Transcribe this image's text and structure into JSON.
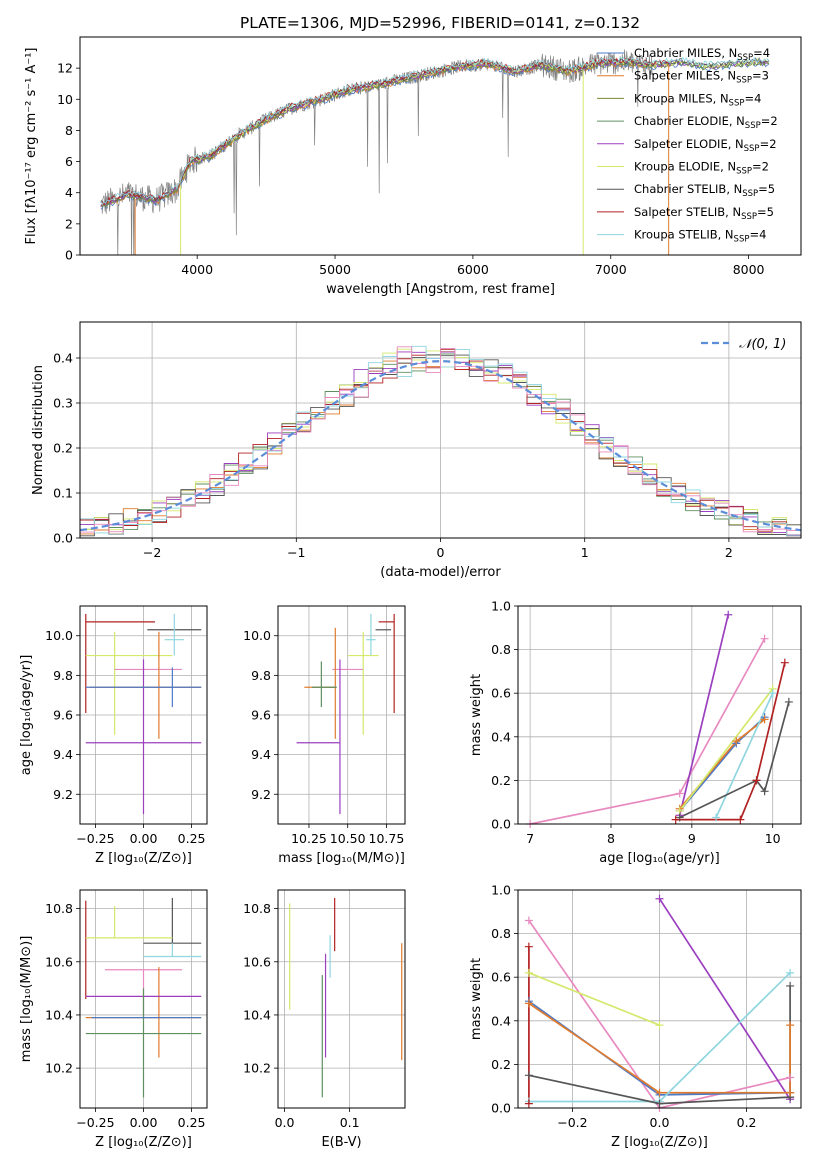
{
  "title": "PLATE=1306, MJD=52996, FIBERID=0141, z=0.132",
  "colors": [
    "#4e79c5",
    "#e07b2e",
    "#7d8a2e",
    "#5f8f5f",
    "#9b3fbf",
    "#d4e86a",
    "#555555",
    "#b22222",
    "#8fd6e0",
    "#e88ac0",
    "#8b6a4a",
    "#777777"
  ],
  "chart_data": [
    {
      "id": "spectrum",
      "type": "line",
      "xlabel": "wavelength [Angstrom, rest frame]",
      "ylabel": "Flux [fλ10⁻¹⁷ erg cm⁻² s⁻¹ A⁻¹]",
      "xlim": [
        3150,
        8380
      ],
      "ylim": [
        0,
        14
      ],
      "xticks": [
        "4000",
        "5000",
        "6000",
        "7000",
        "8000"
      ],
      "yticks": [
        "0",
        "2",
        "4",
        "6",
        "8",
        "10",
        "12"
      ],
      "grid": false,
      "legend_position": "top-right",
      "continuum": [
        [
          3300,
          3.2
        ],
        [
          3500,
          3.9
        ],
        [
          3700,
          3.5
        ],
        [
          3850,
          4.2
        ],
        [
          3950,
          6.0
        ],
        [
          4100,
          6.4
        ],
        [
          4300,
          7.7
        ],
        [
          4500,
          8.7
        ],
        [
          4700,
          9.5
        ],
        [
          4900,
          10.0
        ],
        [
          5100,
          10.6
        ],
        [
          5300,
          10.9
        ],
        [
          5500,
          11.3
        ],
        [
          5700,
          11.7
        ],
        [
          5900,
          12.1
        ],
        [
          6100,
          12.3
        ],
        [
          6300,
          11.8
        ],
        [
          6500,
          12.2
        ],
        [
          6700,
          11.8
        ],
        [
          6900,
          12.3
        ],
        [
          7100,
          12.4
        ],
        [
          7300,
          12.2
        ],
        [
          7500,
          12.4
        ],
        [
          7700,
          12.1
        ],
        [
          7900,
          12.3
        ],
        [
          8100,
          12.4
        ]
      ],
      "series": [
        {
          "name": "Chabrier MILES, N_SSP=4",
          "color": "#4e79c5"
        },
        {
          "name": "Salpeter MILES, N_SSP=3",
          "color": "#e07b2e"
        },
        {
          "name": "Kroupa MILES, N_SSP=4",
          "color": "#7d8a2e"
        },
        {
          "name": "Chabrier ELODIE, N_SSP=2",
          "color": "#5f8f5f"
        },
        {
          "name": "Salpeter ELODIE, N_SSP=2",
          "color": "#9b3fbf"
        },
        {
          "name": "Kroupa ELODIE, N_SSP=2",
          "color": "#d4e86a"
        },
        {
          "name": "Chabrier STELIB, N_SSP=5",
          "color": "#555555"
        },
        {
          "name": "Salpeter STELIB, N_SSP=5",
          "color": "#b22222"
        },
        {
          "name": "Kroupa STELIB, N_SSP=4",
          "color": "#8fd6e0"
        }
      ]
    },
    {
      "id": "residuals",
      "type": "line",
      "xlabel": "(data-model)/error",
      "ylabel": "Normed distribution",
      "xlim": [
        -2.5,
        2.5
      ],
      "ylim": [
        0,
        0.48
      ],
      "xticks": [
        "−2",
        "−1",
        "0",
        "1",
        "2"
      ],
      "yticks": [
        "0.0",
        "0.1",
        "0.2",
        "0.3",
        "0.4"
      ],
      "grid": true,
      "legend": "𝒩(0, 1)",
      "legend_position": "top-right"
    },
    {
      "id": "age_vs_Z",
      "type": "scatter",
      "xlabel": "Z [log₁₀(Z/Z⊙)]",
      "ylabel": "age  [log₁₀(age/yr)]",
      "xlim": [
        -0.33,
        0.33
      ],
      "ylim": [
        9.05,
        10.15
      ],
      "xticks": [
        "−0.25",
        "0.00",
        "0.25"
      ],
      "yticks": [
        "9.2",
        "9.4",
        "9.6",
        "9.8",
        "10.0"
      ],
      "grid": true,
      "points": [
        {
          "x": -0.3,
          "y": 10.07,
          "xerr": [
            0,
            0.36
          ],
          "yerr": [
            0.46,
            0.04
          ],
          "color": "#b22222"
        },
        {
          "x": 0.15,
          "y": 10.03,
          "xerr": [
            0.13,
            0.15
          ],
          "yerr": [
            0.0,
            0.0
          ],
          "color": "#555555"
        },
        {
          "x": 0.16,
          "y": 9.98,
          "xerr": [
            0.05,
            0.05
          ],
          "yerr": [
            0.08,
            0.13
          ],
          "color": "#8fd6e0"
        },
        {
          "x": -0.15,
          "y": 9.9,
          "xerr": [
            0.15,
            0.3
          ],
          "yerr": [
            0.4,
            0.12
          ],
          "color": "#d4e86a"
        },
        {
          "x": 0.0,
          "y": 9.83,
          "xerr": [
            0.15,
            0.2
          ],
          "yerr": [
            0.0,
            0.0
          ],
          "color": "#e88ac0"
        },
        {
          "x": 0.08,
          "y": 9.74,
          "xerr": [
            0.36,
            0.22
          ],
          "yerr": [
            0.26,
            0.28
          ],
          "color": "#e07b2e"
        },
        {
          "x": 0.0,
          "y": 9.46,
          "xerr": [
            0.3,
            0.3
          ],
          "yerr": [
            0.36,
            0.42
          ],
          "color": "#9b3fbf"
        },
        {
          "x": 0.15,
          "y": 9.74,
          "xerr": [
            0.45,
            0.15
          ],
          "yerr": [
            0.1,
            0.1
          ],
          "color": "#4e79c5"
        }
      ]
    },
    {
      "id": "age_vs_mass",
      "type": "scatter",
      "xlabel": "mass [log₁₀(M/M⊙)]",
      "ylabel": "",
      "xlim": [
        10.05,
        10.87
      ],
      "ylim": [
        9.05,
        10.15
      ],
      "xticks": [
        "10.25",
        "10.50",
        "10.75"
      ],
      "yticks": [
        "9.2",
        "9.4",
        "9.6",
        "9.8",
        "10.0"
      ],
      "grid": true,
      "points": [
        {
          "x": 10.8,
          "y": 10.07,
          "xerr": [
            0.1,
            0.0
          ],
          "yerr": [
            0.46,
            0.04
          ],
          "color": "#b22222"
        },
        {
          "x": 10.7,
          "y": 10.03,
          "xerr": [
            0.02,
            0.08
          ],
          "yerr": [
            0.0,
            0.0
          ],
          "color": "#555555"
        },
        {
          "x": 10.65,
          "y": 9.98,
          "xerr": [
            0.03,
            0.03
          ],
          "yerr": [
            0.08,
            0.13
          ],
          "color": "#8fd6e0"
        },
        {
          "x": 10.6,
          "y": 9.9,
          "xerr": [
            0.1,
            0.1
          ],
          "yerr": [
            0.4,
            0.12
          ],
          "color": "#d4e86a"
        },
        {
          "x": 10.5,
          "y": 9.83,
          "xerr": [
            0.1,
            0.1
          ],
          "yerr": [
            0.0,
            0.0
          ],
          "color": "#e88ac0"
        },
        {
          "x": 10.42,
          "y": 9.74,
          "xerr": [
            0.2,
            0.0
          ],
          "yerr": [
            0.26,
            0.3
          ],
          "color": "#e07b2e"
        },
        {
          "x": 10.45,
          "y": 9.46,
          "xerr": [
            0.28,
            0.0
          ],
          "yerr": [
            0.36,
            0.42
          ],
          "color": "#9b3fbf"
        },
        {
          "x": 10.33,
          "y": 9.74,
          "xerr": [
            0.06,
            0.1
          ],
          "yerr": [
            0.1,
            0.13
          ],
          "color": "#5f8f5f"
        }
      ]
    },
    {
      "id": "mass_weight_vs_age",
      "type": "line",
      "xlabel": "age  [log₁₀(age/yr)]",
      "ylabel": "mass weight",
      "xlim": [
        6.85,
        10.35
      ],
      "ylim": [
        0,
        1
      ],
      "xticks": [
        "7",
        "8",
        "9",
        "10"
      ],
      "yticks": [
        "0.0",
        "0.2",
        "0.4",
        "0.6",
        "0.8",
        "1.0"
      ],
      "grid": true,
      "series": [
        {
          "color": "#e88ac0",
          "x": [
            7.0,
            8.85,
            9.9
          ],
          "y": [
            0.0,
            0.14,
            0.85
          ]
        },
        {
          "color": "#9b3fbf",
          "x": [
            8.85,
            9.45
          ],
          "y": [
            0.04,
            0.96
          ]
        },
        {
          "color": "#4e79c5",
          "x": [
            8.85,
            9.55,
            9.9
          ],
          "y": [
            0.06,
            0.37,
            0.49
          ]
        },
        {
          "color": "#e07b2e",
          "x": [
            8.85,
            9.55,
            9.9
          ],
          "y": [
            0.07,
            0.38,
            0.48
          ]
        },
        {
          "color": "#d4e86a",
          "x": [
            8.85,
            10.0
          ],
          "y": [
            0.06,
            0.62
          ]
        },
        {
          "color": "#8fd6e0",
          "x": [
            9.3,
            10.0
          ],
          "y": [
            0.03,
            0.6
          ]
        },
        {
          "color": "#555555",
          "x": [
            8.85,
            9.8,
            9.9,
            10.2
          ],
          "y": [
            0.03,
            0.2,
            0.15,
            0.56
          ]
        },
        {
          "color": "#b22222",
          "x": [
            8.8,
            9.6,
            9.8,
            10.15
          ],
          "y": [
            0.02,
            0.02,
            0.2,
            0.74
          ]
        }
      ]
    },
    {
      "id": "mass_vs_Z",
      "type": "scatter",
      "xlabel": "Z [log₁₀(Z/Z⊙)]",
      "ylabel": "mass [log₁₀(M/M⊙)]",
      "xlim": [
        -0.33,
        0.33
      ],
      "ylim": [
        10.05,
        10.87
      ],
      "xticks": [
        "−0.25",
        "0.00",
        "0.25"
      ],
      "yticks": [
        "10.2",
        "10.4",
        "10.6",
        "10.8"
      ],
      "grid": true,
      "points": [
        {
          "x": -0.3,
          "y": 10.79,
          "xerr": [
            0,
            0.0
          ],
          "yerr": [
            0.33,
            0.04
          ],
          "color": "#b22222"
        },
        {
          "x": 0.15,
          "y": 10.67,
          "xerr": [
            0.15,
            0.15
          ],
          "yerr": [
            0.0,
            0.17
          ],
          "color": "#555555"
        },
        {
          "x": -0.15,
          "y": 10.69,
          "xerr": [
            0.15,
            0.3
          ],
          "yerr": [
            0.0,
            0.12
          ],
          "color": "#d4e86a"
        },
        {
          "x": 0.0,
          "y": 10.57,
          "xerr": [
            0.2,
            0.2
          ],
          "yerr": [
            0.18,
            0.0
          ],
          "color": "#e88ac0"
        },
        {
          "x": 0.08,
          "y": 10.39,
          "xerr": [
            0.38,
            0.22
          ],
          "yerr": [
            0.15,
            0.19
          ],
          "color": "#e07b2e"
        },
        {
          "x": 0.0,
          "y": 10.47,
          "xerr": [
            0.3,
            0.3
          ],
          "yerr": [
            0.0,
            0.0
          ],
          "color": "#9b3fbf"
        },
        {
          "x": 0.0,
          "y": 10.33,
          "xerr": [
            0.3,
            0.3
          ],
          "yerr": [
            0.24,
            0.17
          ],
          "color": "#5f8f5f"
        },
        {
          "x": 0.15,
          "y": 10.62,
          "xerr": [
            0.15,
            0.15
          ],
          "yerr": [
            0.0,
            0.05
          ],
          "color": "#8fd6e0"
        },
        {
          "x": 0.05,
          "y": 10.39,
          "xerr": [
            0.32,
            0.25
          ],
          "yerr": [
            0.0,
            0.0
          ],
          "color": "#4e79c5"
        }
      ]
    },
    {
      "id": "mass_vs_ebv",
      "type": "scatter",
      "xlabel": "E(B-V)",
      "ylabel": "",
      "xlim": [
        -0.01,
        0.185
      ],
      "ylim": [
        10.05,
        10.87
      ],
      "xticks": [
        "0.0",
        "0.1"
      ],
      "yticks": [
        "10.2",
        "10.4",
        "10.6",
        "10.8"
      ],
      "grid": true,
      "points": [
        {
          "x": 0.008,
          "y": 10.62,
          "xerr": [
            0,
            0
          ],
          "yerr": [
            0.2,
            0.2
          ],
          "color": "#d4e86a"
        },
        {
          "x": 0.058,
          "y": 10.33,
          "xerr": [
            0,
            0
          ],
          "yerr": [
            0.24,
            0.22
          ],
          "color": "#5f8f5f"
        },
        {
          "x": 0.063,
          "y": 10.43,
          "xerr": [
            0,
            0
          ],
          "yerr": [
            0.19,
            0.2
          ],
          "color": "#9b3fbf"
        },
        {
          "x": 0.07,
          "y": 10.62,
          "xerr": [
            0,
            0
          ],
          "yerr": [
            0.08,
            0.08
          ],
          "color": "#8fd6e0"
        },
        {
          "x": 0.077,
          "y": 10.72,
          "xerr": [
            0,
            0
          ],
          "yerr": [
            0.08,
            0.12
          ],
          "color": "#b22222"
        },
        {
          "x": 0.18,
          "y": 10.45,
          "xerr": [
            0,
            0
          ],
          "yerr": [
            0.22,
            0.22
          ],
          "color": "#e07b2e"
        }
      ]
    },
    {
      "id": "mass_weight_vs_Z",
      "type": "line",
      "xlabel": "Z [log₁₀(Z/Z⊙)]",
      "ylabel": "mass weight",
      "xlim": [
        -0.325,
        0.325
      ],
      "ylim": [
        0,
        1
      ],
      "xticks": [
        "−0.2",
        "0.0",
        "0.2"
      ],
      "yticks": [
        "0.0",
        "0.2",
        "0.4",
        "0.6",
        "0.8",
        "1.0"
      ],
      "grid": true,
      "series": [
        {
          "color": "#e88ac0",
          "x": [
            -0.3,
            0.0,
            0.3
          ],
          "y": [
            0.86,
            0.0,
            0.14
          ]
        },
        {
          "color": "#9b3fbf",
          "x": [
            0.0,
            0.3
          ],
          "y": [
            0.96,
            0.04
          ]
        },
        {
          "color": "#d4e86a",
          "x": [
            -0.3,
            0.0
          ],
          "y": [
            0.62,
            0.38
          ]
        },
        {
          "color": "#4e79c5",
          "x": [
            -0.3,
            0.0,
            0.3
          ],
          "y": [
            0.49,
            0.06,
            0.07
          ]
        },
        {
          "color": "#e07b2e",
          "x": [
            -0.3,
            0.0,
            0.3
          ],
          "y": [
            0.48,
            0.07,
            0.07
          ]
        },
        {
          "color": "#8fd6e0",
          "x": [
            -0.3,
            0.0,
            0.3
          ],
          "y": [
            0.03,
            0.03,
            0.62
          ]
        },
        {
          "color": "#555555",
          "x": [
            -0.3,
            0.0,
            0.3
          ],
          "y": [
            0.15,
            0.02,
            0.05
          ]
        },
        {
          "color": "#b22222",
          "x": [
            -0.3,
            -0.3
          ],
          "y": [
            0.02,
            0.74
          ]
        },
        {
          "color": "#555555",
          "x": [
            0.3,
            0.3
          ],
          "y": [
            0.05,
            0.56
          ]
        },
        {
          "color": "#e07b2e",
          "x": [
            0.3,
            0.3
          ],
          "y": [
            0.07,
            0.38
          ]
        }
      ]
    }
  ]
}
